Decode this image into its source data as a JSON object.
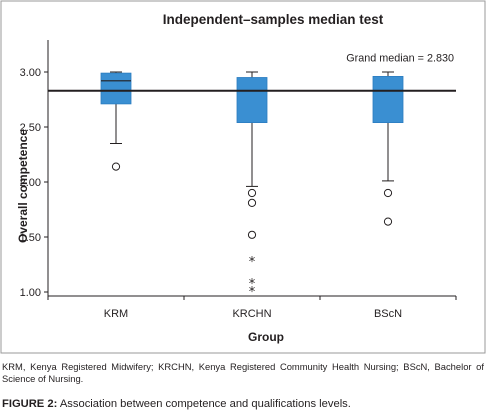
{
  "chart_data": {
    "type": "boxplot",
    "title": "Independent–samples median test",
    "xlabel": "Group",
    "ylabel": "Overall competence",
    "ylim": [
      1.0,
      3.1
    ],
    "yticks": [
      1.0,
      1.5,
      2.0,
      2.5,
      3.0
    ],
    "ytick_labels": [
      "1.00",
      "1.50",
      "2.00",
      "2.50",
      "3.00"
    ],
    "categories": [
      "KRM",
      "KRCHN",
      "BScN"
    ],
    "reference_line": {
      "label": "Grand median = 2.830",
      "value": 2.83
    },
    "box_color": "#3a8fd2",
    "boxes": [
      {
        "category": "KRM",
        "q1": 2.71,
        "median": 2.92,
        "q3": 2.99,
        "whisker_low": 2.35,
        "whisker_high": 3.0,
        "outliers": [
          2.14
        ],
        "extremes": []
      },
      {
        "category": "KRCHN",
        "q1": 2.54,
        "median": 2.83,
        "q3": 2.95,
        "whisker_low": 1.96,
        "whisker_high": 3.0,
        "outliers": [
          1.9,
          1.81,
          1.52
        ],
        "extremes": [
          1.28,
          1.08,
          1.01
        ]
      },
      {
        "category": "BScN",
        "q1": 2.54,
        "median": 2.83,
        "q3": 2.96,
        "whisker_low": 2.01,
        "whisker_high": 3.0,
        "outliers": [
          1.9,
          1.64
        ],
        "extremes": []
      }
    ]
  },
  "caption": {
    "note": "KRM, Kenya Registered Midwifery; KRCHN, Kenya Registered Community Health Nursing; BScN, Bachelor of Science of Nursing.",
    "figure_label": "FIGURE 2:",
    "figure_text": "Association between competence and qualifications levels."
  }
}
